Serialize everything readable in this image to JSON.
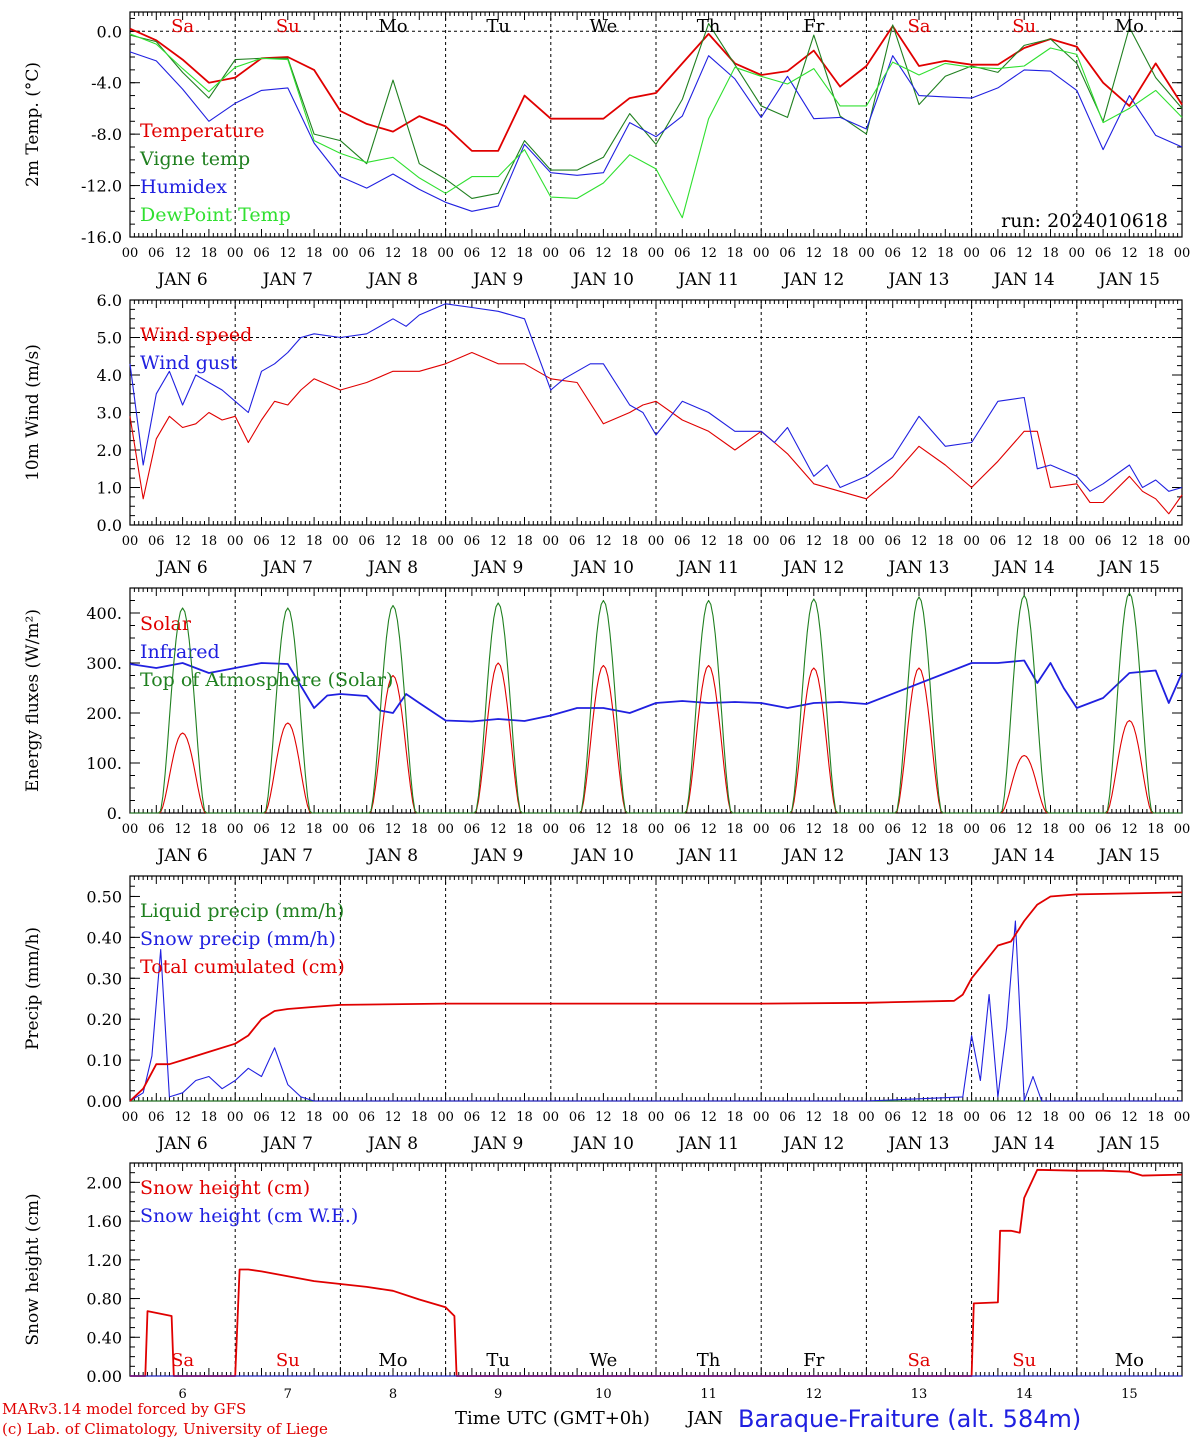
{
  "chart_data": [
    {
      "type": "line",
      "ylabel": "2m Temp. (°C)",
      "ylim": [
        -16,
        1.5
      ],
      "yticks": [
        "0.0",
        "-4.0",
        "-8.0",
        "-12.0",
        "-16.0"
      ],
      "ytick_values": [
        0,
        -4,
        -8,
        -12,
        -16
      ],
      "annotation": "run: 2024010618",
      "x_unit": "hours since Jan 6 00 UTC",
      "series": [
        {
          "name": "Temperature",
          "color": "#e00000",
          "x": [
            0,
            6,
            12,
            18,
            24,
            30,
            36,
            42,
            48,
            54,
            60,
            66,
            72,
            78,
            84,
            90,
            96,
            102,
            108,
            114,
            120,
            126,
            132,
            138,
            144,
            150,
            156,
            162,
            168,
            174,
            180,
            186,
            192,
            198,
            204,
            210,
            216,
            222,
            228,
            234,
            240
          ],
          "y": [
            0.2,
            -0.7,
            -2.2,
            -4,
            -3.6,
            -2.1,
            -2,
            -3,
            -6.2,
            -7.2,
            -7.8,
            -6.6,
            -7.4,
            -9.3,
            -9.3,
            -5,
            -6.8,
            -6.8,
            -6.8,
            -5.2,
            -4.8,
            -2.5,
            -0.2,
            -2.5,
            -3.4,
            -3.1,
            -1.5,
            -4.3,
            -2.7,
            0.4,
            -2.7,
            -2.3,
            -2.6,
            -2.6,
            -1.3,
            -0.6,
            -1.2,
            -4,
            -5.8,
            -2.5,
            -5.7
          ]
        },
        {
          "name": "Vigne temp",
          "color": "#208020",
          "x": [
            0,
            6,
            12,
            18,
            24,
            30,
            36,
            42,
            48,
            54,
            60,
            66,
            72,
            78,
            84,
            90,
            96,
            102,
            108,
            114,
            120,
            126,
            132,
            138,
            144,
            150,
            156,
            162,
            168,
            174,
            180,
            186,
            192,
            198,
            204,
            210,
            216,
            222,
            228,
            234,
            240
          ],
          "y": [
            -0.3,
            -0.8,
            -3.2,
            -5.2,
            -2.2,
            -2.1,
            -2.1,
            -8,
            -8.5,
            -10.3,
            -3.8,
            -10.3,
            -11.5,
            -13,
            -12.6,
            -8.5,
            -10.8,
            -10.8,
            -9.8,
            -6.4,
            -8.8,
            -5.3,
            0.6,
            -2.6,
            -5.8,
            -6.7,
            -0.3,
            -6.6,
            -8,
            0.5,
            -5.7,
            -3.5,
            -2.7,
            -3.2,
            -1.1,
            -0.6,
            -2.5,
            -7,
            0.3,
            -3.6,
            -6
          ]
        },
        {
          "name": "Humidex",
          "color": "#2020e0",
          "x": [
            0,
            6,
            12,
            18,
            24,
            30,
            36,
            42,
            48,
            54,
            60,
            66,
            72,
            78,
            84,
            90,
            96,
            102,
            108,
            114,
            120,
            126,
            132,
            138,
            144,
            150,
            156,
            162,
            168,
            174,
            180,
            186,
            192,
            198,
            204,
            210,
            216,
            222,
            228,
            234,
            240
          ],
          "y": [
            -1.6,
            -2.3,
            -4.5,
            -7,
            -5.6,
            -4.6,
            -4.4,
            -8.7,
            -11.3,
            -12.2,
            -11.1,
            -12.3,
            -13.3,
            -14,
            -13.6,
            -8.8,
            -11,
            -11.2,
            -11,
            -7.1,
            -8.2,
            -6.6,
            -1.9,
            -3.7,
            -6.7,
            -3.5,
            -6.8,
            -6.7,
            -7.6,
            -1.9,
            -5,
            -5.1,
            -5.2,
            -4.4,
            -3,
            -3.1,
            -4.6,
            -9.2,
            -5,
            -8.1,
            -9
          ]
        },
        {
          "name": "DewPoint Temp",
          "color": "#30e030",
          "x": [
            0,
            6,
            12,
            18,
            24,
            30,
            36,
            42,
            48,
            54,
            60,
            66,
            72,
            78,
            84,
            90,
            96,
            102,
            108,
            114,
            120,
            126,
            132,
            138,
            144,
            150,
            156,
            162,
            168,
            174,
            180,
            186,
            192,
            198,
            204,
            210,
            216,
            222,
            228,
            234,
            240
          ],
          "y": [
            -0.2,
            -1,
            -2.9,
            -4.7,
            -2.8,
            -2.1,
            -2.2,
            -8.5,
            -9.5,
            -10.2,
            -9.8,
            -11.4,
            -12.6,
            -11.3,
            -11.3,
            -9.2,
            -12.9,
            -13,
            -11.8,
            -9.6,
            -10.7,
            -14.5,
            -6.8,
            -2.8,
            -3.5,
            -4.1,
            -2.9,
            -5.8,
            -5.8,
            -2.4,
            -3.4,
            -2.5,
            -2.8,
            -2.9,
            -2.7,
            -1.3,
            -1.8,
            -7.1,
            -6,
            -4.6,
            -6.7
          ]
        }
      ]
    },
    {
      "type": "line",
      "ylabel": "10m Wind (m/s)",
      "ylim": [
        0,
        6
      ],
      "yticks": [
        "0.0",
        "1.0",
        "2.0",
        "3.0",
        "4.0",
        "5.0",
        "6.0"
      ],
      "ytick_values": [
        0,
        1,
        2,
        3,
        4,
        5,
        6
      ],
      "reference_line": 5,
      "series": [
        {
          "name": "Wind speed",
          "color": "#e00000",
          "x": [
            0,
            3,
            6,
            9,
            12,
            15,
            18,
            21,
            24,
            27,
            30,
            33,
            36,
            39,
            42,
            48,
            54,
            60,
            66,
            72,
            78,
            84,
            90,
            96,
            102,
            108,
            114,
            117,
            120,
            126,
            132,
            138,
            144,
            147,
            150,
            156,
            162,
            168,
            174,
            180,
            186,
            192,
            198,
            204,
            207,
            210,
            216,
            219,
            222,
            228,
            231,
            234,
            237,
            240
          ],
          "y": [
            2.9,
            0.7,
            2.3,
            2.9,
            2.6,
            2.7,
            3,
            2.8,
            2.9,
            2.2,
            2.8,
            3.3,
            3.2,
            3.6,
            3.9,
            3.6,
            3.8,
            4.1,
            4.1,
            4.3,
            4.6,
            4.3,
            4.3,
            3.9,
            3.8,
            2.7,
            3,
            3.2,
            3.3,
            2.8,
            2.5,
            2,
            2.5,
            2.2,
            1.9,
            1.1,
            0.9,
            0.7,
            1.3,
            2.1,
            1.6,
            1,
            1.7,
            2.5,
            2.5,
            1,
            1.1,
            0.6,
            0.6,
            1.3,
            0.9,
            0.7,
            0.3,
            0.8
          ]
        },
        {
          "name": "Wind gust",
          "color": "#2020e0",
          "x": [
            0,
            3,
            6,
            9,
            12,
            15,
            18,
            21,
            24,
            27,
            30,
            33,
            36,
            39,
            42,
            48,
            54,
            60,
            63,
            66,
            72,
            78,
            84,
            90,
            96,
            99,
            102,
            105,
            108,
            114,
            117,
            120,
            126,
            132,
            138,
            144,
            147,
            150,
            156,
            159,
            162,
            168,
            174,
            180,
            186,
            192,
            198,
            204,
            207,
            210,
            216,
            219,
            222,
            228,
            231,
            234,
            237,
            240
          ],
          "y": [
            4.3,
            1.6,
            3.5,
            4.1,
            3.2,
            4,
            3.8,
            3.6,
            3.3,
            3,
            4.1,
            4.3,
            4.6,
            5,
            5.1,
            5,
            5.1,
            5.5,
            5.3,
            5.6,
            5.9,
            5.8,
            5.7,
            5.5,
            3.6,
            3.9,
            4.1,
            4.3,
            4.3,
            3.2,
            3,
            2.4,
            3.3,
            3,
            2.5,
            2.5,
            2.2,
            2.6,
            1.3,
            1.6,
            1,
            1.3,
            1.8,
            2.9,
            2.1,
            2.2,
            3.3,
            3.4,
            1.5,
            1.6,
            1.3,
            0.9,
            1.1,
            1.6,
            1,
            1.2,
            0.9,
            1
          ]
        }
      ]
    },
    {
      "type": "line",
      "ylabel": "Energy fluxes (W/m²)",
      "ylim": [
        0,
        450
      ],
      "yticks": [
        "0.",
        "100.",
        "200.",
        "300.",
        "400."
      ],
      "ytick_values": [
        0,
        100,
        200,
        300,
        400
      ],
      "series": [
        {
          "name": "Solar",
          "color": "#e00000",
          "peak_hour": 12,
          "peak_values": [
            160,
            180,
            275,
            300,
            295,
            295,
            290,
            290,
            115,
            185
          ]
        },
        {
          "name": "Infrared",
          "color": "#2020e0",
          "x": [
            0,
            6,
            12,
            18,
            24,
            30,
            36,
            42,
            45,
            48,
            54,
            57,
            60,
            63,
            66,
            72,
            78,
            84,
            90,
            96,
            102,
            108,
            114,
            120,
            126,
            132,
            138,
            144,
            150,
            156,
            162,
            168,
            192,
            198,
            204,
            207,
            210,
            213,
            216,
            222,
            228,
            234,
            237,
            240
          ],
          "y": [
            298,
            290,
            300,
            280,
            290,
            300,
            298,
            210,
            235,
            238,
            234,
            205,
            200,
            238,
            220,
            185,
            183,
            188,
            184,
            195,
            210,
            210,
            200,
            220,
            224,
            220,
            222,
            220,
            210,
            220,
            222,
            218,
            300,
            300,
            305,
            260,
            300,
            250,
            210,
            230,
            280,
            285,
            220,
            280
          ]
        },
        {
          "name": "Top of Atmosphere (Solar)",
          "color": "#208020",
          "peak_hour": 12,
          "peak_values": [
            410,
            410,
            415,
            420,
            425,
            425,
            428,
            432,
            435,
            440
          ]
        }
      ]
    },
    {
      "type": "line",
      "ylabel": "Precip (mm/h)",
      "ylim": [
        0,
        0.55
      ],
      "yticks": [
        "0.00",
        "0.10",
        "0.20",
        "0.30",
        "0.40",
        "0.50"
      ],
      "ytick_values": [
        0,
        0.1,
        0.2,
        0.3,
        0.4,
        0.5
      ],
      "series": [
        {
          "name": "Liquid precip (mm/h)",
          "color": "#208020",
          "x": [
            0,
            240
          ],
          "y": [
            0,
            0
          ]
        },
        {
          "name": "Snow precip (mm/h)",
          "color": "#2020e0",
          "x": [
            0,
            3,
            5,
            7,
            9,
            12,
            15,
            18,
            21,
            24,
            27,
            30,
            33,
            36,
            39,
            42,
            48,
            72,
            96,
            120,
            144,
            168,
            190,
            192,
            194,
            196,
            198,
            200,
            202,
            204,
            206,
            208,
            210,
            212,
            214,
            216,
            240
          ],
          "y": [
            0,
            0.02,
            0.11,
            0.37,
            0.01,
            0.02,
            0.05,
            0.06,
            0.03,
            0.05,
            0.08,
            0.06,
            0.13,
            0.04,
            0.01,
            0,
            0,
            0,
            0,
            0,
            0,
            0,
            0.01,
            0.16,
            0.05,
            0.26,
            0.01,
            0.18,
            0.44,
            0,
            0.06,
            0,
            0,
            0,
            0,
            0,
            0
          ]
        },
        {
          "name": "Total cumulated (cm)",
          "color": "#e00000",
          "x": [
            0,
            3,
            6,
            9,
            12,
            18,
            24,
            27,
            30,
            33,
            36,
            42,
            48,
            72,
            96,
            120,
            144,
            168,
            188,
            190,
            192,
            195,
            198,
            201,
            204,
            207,
            210,
            216,
            240
          ],
          "y": [
            0,
            0.03,
            0.09,
            0.09,
            0.1,
            0.12,
            0.14,
            0.16,
            0.2,
            0.22,
            0.225,
            0.23,
            0.235,
            0.238,
            0.238,
            0.238,
            0.238,
            0.24,
            0.245,
            0.26,
            0.3,
            0.34,
            0.38,
            0.39,
            0.44,
            0.48,
            0.5,
            0.505,
            0.51
          ]
        }
      ]
    },
    {
      "type": "line",
      "ylabel": "Snow height (cm)",
      "ylim": [
        0,
        2.2
      ],
      "yticks": [
        "0.00",
        "0.40",
        "0.80",
        "1.20",
        "1.60",
        "2.00"
      ],
      "ytick_values": [
        0,
        0.4,
        0.8,
        1.2,
        1.6,
        2.0
      ],
      "series": [
        {
          "name": "Snow height (cm)",
          "color": "#e00000",
          "x": [
            0,
            3.5,
            4,
            9.5,
            10,
            24,
            25,
            27,
            30,
            36,
            42,
            48,
            54,
            60,
            66,
            72,
            74,
            74.5,
            144,
            192,
            192.5,
            198,
            198.5,
            201,
            203,
            204,
            207,
            216,
            222,
            228,
            231,
            240
          ],
          "y": [
            0,
            0,
            0.67,
            0.62,
            0,
            0,
            1.1,
            1.1,
            1.08,
            1.03,
            0.98,
            0.95,
            0.92,
            0.88,
            0.79,
            0.71,
            0.62,
            0,
            0,
            0,
            0.75,
            0.76,
            1.5,
            1.5,
            1.48,
            1.84,
            2.13,
            2.12,
            2.12,
            2.11,
            2.07,
            2.08
          ]
        },
        {
          "name": "Snow height (cm W.E.)",
          "color": "#2020e0",
          "x": [
            0,
            240
          ],
          "y": [
            0,
            0
          ]
        }
      ]
    }
  ],
  "axis": {
    "hour_labels": [
      "00",
      "06",
      "12",
      "18"
    ],
    "end_label": "00",
    "dates": [
      "JAN 6",
      "JAN 7",
      "JAN 8",
      "JAN 9",
      "JAN 10",
      "JAN 11",
      "JAN 12",
      "JAN 13",
      "JAN 14",
      "JAN 15"
    ],
    "days": [
      {
        "name": "Sa",
        "color": "#e00000"
      },
      {
        "name": "Su",
        "color": "#e00000"
      },
      {
        "name": "Mo",
        "color": "#000000"
      },
      {
        "name": "Tu",
        "color": "#000000"
      },
      {
        "name": "We",
        "color": "#000000"
      },
      {
        "name": "Th",
        "color": "#000000"
      },
      {
        "name": "Fr",
        "color": "#000000"
      },
      {
        "name": "Sa",
        "color": "#e00000"
      },
      {
        "name": "Su",
        "color": "#e00000"
      },
      {
        "name": "Mo",
        "color": "#000000"
      }
    ],
    "bottom_day_numbers": [
      "6",
      "7",
      "8",
      "9",
      "10",
      "11",
      "12",
      "13",
      "14",
      "15"
    ]
  },
  "footer": {
    "model_line": "MARv3.14 model forced by GFS",
    "credit_line": "(c) Lab. of Climatology, University of Liege",
    "x_title": "Time UTC (GMT+0h)",
    "x_month": "JAN",
    "station": "Baraque-Fraiture (alt. 584m)"
  }
}
